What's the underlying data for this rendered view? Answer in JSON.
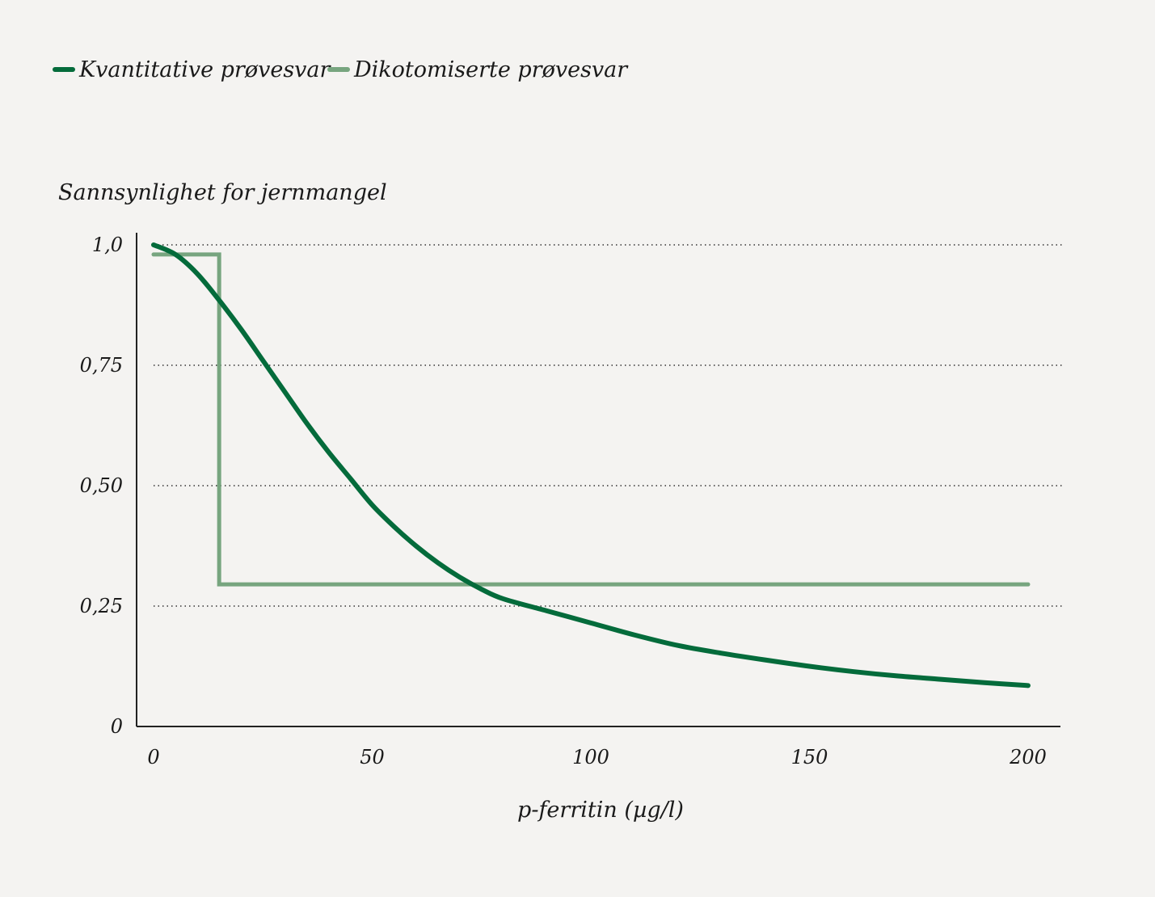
{
  "colors": {
    "background": "#f4f3f1",
    "quantitative": "#046b3b",
    "dichotomized": "#77a57f",
    "text": "#1a1a1a"
  },
  "chart_data": {
    "type": "line",
    "title": "",
    "xlabel": "p-ferritin (µg/l)",
    "ylabel": "Sannsynlighet for jernmangel",
    "xlim": [
      0,
      210
    ],
    "ylim": [
      0,
      1.0
    ],
    "x_ticks": [
      {
        "value": 0,
        "label": "0"
      },
      {
        "value": 50,
        "label": "50"
      },
      {
        "value": 100,
        "label": "100"
      },
      {
        "value": 150,
        "label": "150"
      },
      {
        "value": 200,
        "label": "200"
      }
    ],
    "y_ticks": [
      {
        "value": 0,
        "label": "0"
      },
      {
        "value": 0.25,
        "label": "0,25"
      },
      {
        "value": 0.5,
        "label": "0,50"
      },
      {
        "value": 0.75,
        "label": "0,75"
      },
      {
        "value": 1.0,
        "label": "1,0"
      }
    ],
    "grid": {
      "y": true,
      "x": false,
      "style": "dotted"
    },
    "legend_position": "top-left",
    "series": [
      {
        "name": "Kvantitative prøvesvar",
        "color": "#046b3b",
        "x": [
          0,
          5,
          10,
          15,
          20,
          25,
          30,
          35,
          40,
          45,
          50,
          55,
          60,
          65,
          70,
          75,
          80,
          90,
          100,
          110,
          120,
          130,
          140,
          150,
          160,
          170,
          180,
          190,
          200
        ],
        "y": [
          1.0,
          0.98,
          0.94,
          0.885,
          0.825,
          0.76,
          0.695,
          0.63,
          0.57,
          0.515,
          0.46,
          0.415,
          0.375,
          0.34,
          0.31,
          0.285,
          0.265,
          0.24,
          0.215,
          0.19,
          0.168,
          0.152,
          0.138,
          0.125,
          0.114,
          0.105,
          0.098,
          0.091,
          0.085
        ]
      },
      {
        "name": "Dikotomiserte prøvesvar",
        "color": "#77a57f",
        "x": [
          0,
          15,
          15,
          200
        ],
        "y": [
          0.98,
          0.98,
          0.295,
          0.295
        ]
      }
    ]
  }
}
